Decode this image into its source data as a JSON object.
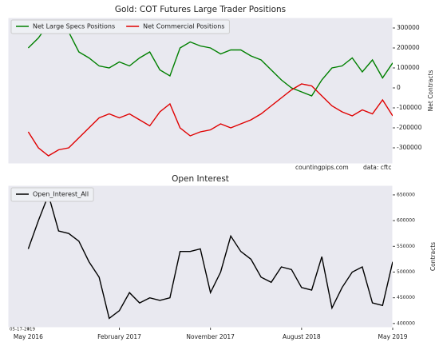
{
  "chart_data": [
    {
      "type": "line",
      "title": "Gold: COT Futures Large Trader Positions",
      "x": [
        "2016-05",
        "2016-06",
        "2016-07",
        "2016-08",
        "2016-09",
        "2016-10",
        "2016-11",
        "2016-12",
        "2017-01",
        "2017-02",
        "2017-03",
        "2017-04",
        "2017-05",
        "2017-06",
        "2017-07",
        "2017-08",
        "2017-09",
        "2017-10",
        "2017-11",
        "2017-12",
        "2018-01",
        "2018-02",
        "2018-03",
        "2018-04",
        "2018-05",
        "2018-06",
        "2018-07",
        "2018-08",
        "2018-09",
        "2018-10",
        "2018-11",
        "2018-12",
        "2019-01",
        "2019-02",
        "2019-03",
        "2019-04",
        "2019-05"
      ],
      "series": [
        {
          "name": "Net Large Specs Positions",
          "color": "#008000",
          "values": [
            200000,
            250000,
            320000,
            300000,
            280000,
            180000,
            150000,
            110000,
            100000,
            130000,
            110000,
            150000,
            180000,
            90000,
            60000,
            200000,
            230000,
            210000,
            200000,
            170000,
            190000,
            190000,
            160000,
            140000,
            90000,
            40000,
            0,
            -20000,
            -40000,
            40000,
            100000,
            110000,
            150000,
            80000,
            140000,
            50000,
            125000
          ]
        },
        {
          "name": "Net Commercial Positions",
          "color": "#e00000",
          "values": [
            -220000,
            -300000,
            -340000,
            -310000,
            -300000,
            -250000,
            -200000,
            -150000,
            -130000,
            -150000,
            -130000,
            -160000,
            -190000,
            -120000,
            -80000,
            -200000,
            -240000,
            -220000,
            -210000,
            -180000,
            -200000,
            -180000,
            -160000,
            -130000,
            -90000,
            -50000,
            -10000,
            20000,
            10000,
            -40000,
            -90000,
            -120000,
            -140000,
            -110000,
            -130000,
            -60000,
            -140000
          ]
        }
      ],
      "xlim": [
        "2016-03",
        "2019-05"
      ],
      "ylim": [
        -380000,
        352000
      ],
      "yticks": [
        -300000,
        -200000,
        -100000,
        0,
        100000,
        200000,
        300000
      ],
      "ylabel": "Net Contracts",
      "legend": "upper left",
      "annotations": [
        "countingpips.com",
        "data: cftc"
      ]
    },
    {
      "type": "line",
      "title": "Open Interest",
      "x": [
        "2016-05",
        "2016-06",
        "2016-07",
        "2016-08",
        "2016-09",
        "2016-10",
        "2016-11",
        "2016-12",
        "2017-01",
        "2017-02",
        "2017-03",
        "2017-04",
        "2017-05",
        "2017-06",
        "2017-07",
        "2017-08",
        "2017-09",
        "2017-10",
        "2017-11",
        "2017-12",
        "2018-01",
        "2018-02",
        "2018-03",
        "2018-04",
        "2018-05",
        "2018-06",
        "2018-07",
        "2018-08",
        "2018-09",
        "2018-10",
        "2018-11",
        "2018-12",
        "2019-01",
        "2019-02",
        "2019-03",
        "2019-04",
        "2019-05"
      ],
      "series": [
        {
          "name": "Open_Interest_All",
          "color": "#000000",
          "values": [
            545000,
            600000,
            650000,
            580000,
            575000,
            560000,
            520000,
            490000,
            410000,
            425000,
            460000,
            440000,
            450000,
            445000,
            450000,
            540000,
            540000,
            545000,
            460000,
            500000,
            570000,
            540000,
            525000,
            490000,
            480000,
            510000,
            505000,
            470000,
            465000,
            530000,
            430000,
            470000,
            500000,
            510000,
            440000,
            435000,
            520000
          ]
        }
      ],
      "xlim": [
        "2016-03",
        "2019-05"
      ],
      "xticks": [
        {
          "value": "2016-05",
          "label": "May 2016"
        },
        {
          "value": "2017-02",
          "label": "February 2017"
        },
        {
          "value": "2017-11",
          "label": "November 2017"
        },
        {
          "value": "2018-08",
          "label": "August 2018"
        },
        {
          "value": "2019-05",
          "label": "May 2019"
        }
      ],
      "ylim": [
        392000,
        668500
      ],
      "yticks": [
        400000,
        450000,
        500000,
        550000,
        600000,
        650000
      ],
      "ylabel": "Contracts",
      "legend": "upper left",
      "annotations": [
        "05-17-2019"
      ]
    }
  ]
}
